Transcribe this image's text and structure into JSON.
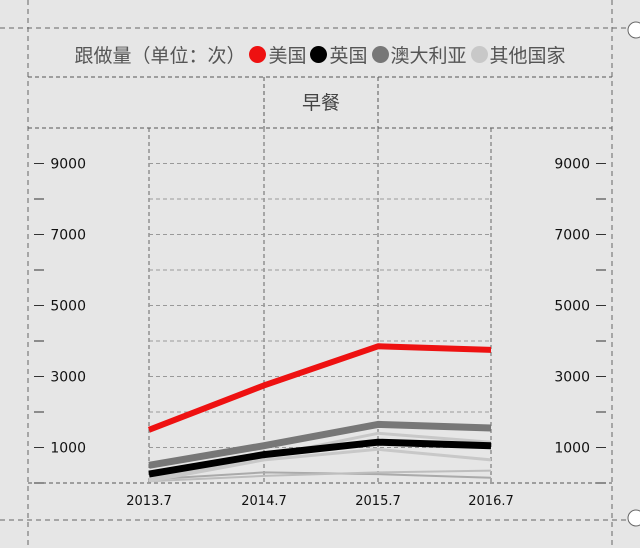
{
  "header": {
    "unit_label": "跟做量（单位：次）"
  },
  "legend": [
    {
      "name": "美国",
      "color": "#ee1111"
    },
    {
      "name": "英国",
      "color": "#000000"
    },
    {
      "name": "澳大利亚",
      "color": "#777777"
    },
    {
      "name": "其他国家",
      "color": "#c8c8c8"
    }
  ],
  "chart_data": {
    "type": "line",
    "title": "早餐",
    "x": [
      "2013.7",
      "2014.7",
      "2015.7",
      "2016.7"
    ],
    "ylim": [
      0,
      10000
    ],
    "yticks": [
      1000,
      3000,
      5000,
      7000,
      9000
    ],
    "grid": true,
    "series": [
      {
        "name": "美国",
        "color": "#ee1111",
        "values": [
          1500,
          2750,
          3850,
          3750
        ]
      },
      {
        "name": "英国",
        "color": "#000000",
        "values": [
          250,
          800,
          1150,
          1050
        ]
      },
      {
        "name": "澳大利亚",
        "color": "#777777",
        "values": [
          500,
          1050,
          1650,
          1550
        ]
      },
      {
        "name": "其他国家",
        "color": "#c8c8c8",
        "values": [
          100,
          750,
          1400,
          1150
        ]
      },
      {
        "name": "其他国家",
        "color": "#c8c8c8",
        "values": [
          50,
          650,
          950,
          650
        ]
      },
      {
        "name": "其他国家",
        "color": "#bdbdbd",
        "values": [
          50,
          200,
          300,
          350
        ]
      },
      {
        "name": "其他国家",
        "color": "#aaaaaa",
        "values": [
          100,
          300,
          250,
          150
        ]
      }
    ]
  }
}
